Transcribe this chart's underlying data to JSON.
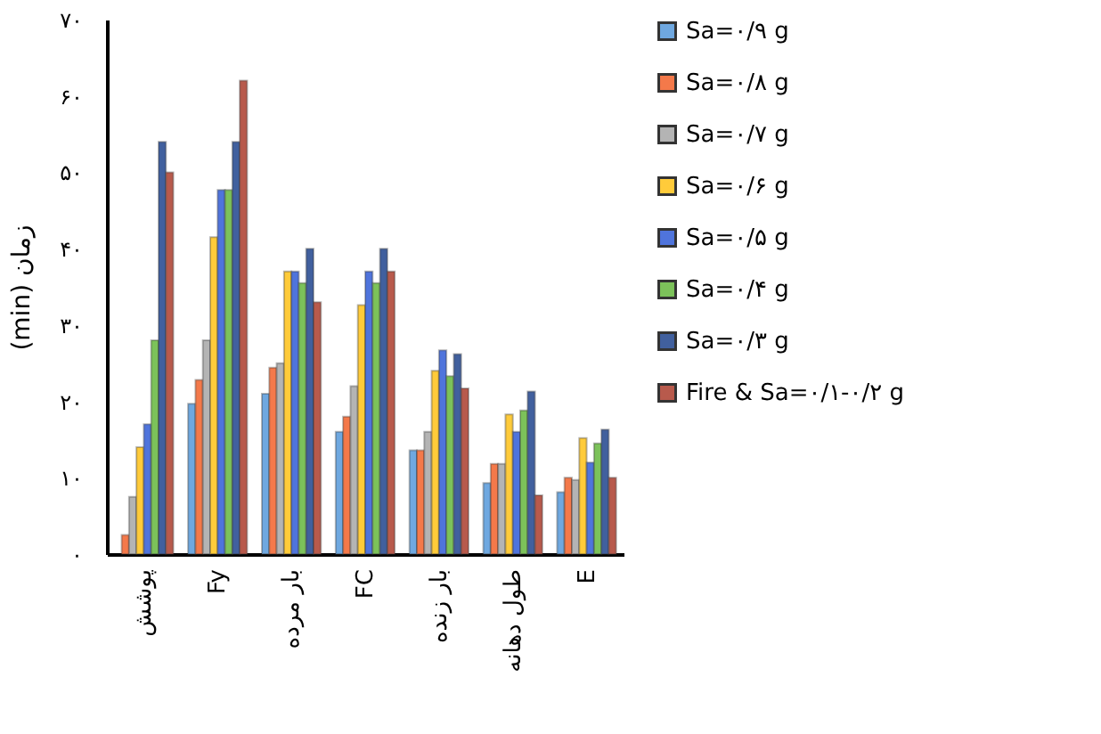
{
  "chart_data": {
    "type": "bar",
    "ylabel": "(min) زمان",
    "categories": [
      "پوشش",
      "Fy",
      "بار مرده",
      "FC",
      "بار زنده",
      "طول دهانه",
      "E"
    ],
    "series": [
      {
        "name": "Sa=۰/۹ g",
        "color": "#6fa8e0",
        "values": [
          null,
          19.7,
          21,
          16,
          13.6,
          9.3,
          8.1
        ]
      },
      {
        "name": "Sa=۰/۸ g",
        "color": "#f4794a",
        "values": [
          2.5,
          22.8,
          24.4,
          18,
          13.6,
          11.8,
          10
        ]
      },
      {
        "name": "Sa=۰/۷ g",
        "color": "#b4b4b4",
        "values": [
          7.5,
          28,
          25,
          22,
          16,
          11.8,
          9.7
        ]
      },
      {
        "name": "Sa=۰/۶ g",
        "color": "#ffcb3a",
        "values": [
          14,
          41.5,
          37,
          32.6,
          24,
          18.3,
          15.2
        ]
      },
      {
        "name": "Sa=۰/۵ g",
        "color": "#4f74dc",
        "values": [
          17,
          47.7,
          37,
          37,
          26.7,
          16,
          12
        ]
      },
      {
        "name": "Sa=۰/۴ g",
        "color": "#7cc25a",
        "values": [
          28,
          47.7,
          35.5,
          35.5,
          23.3,
          18.8,
          14.5
        ]
      },
      {
        "name": "Sa=۰/۳ g",
        "color": "#41609e",
        "values": [
          54,
          54,
          40,
          40,
          26.2,
          21.3,
          16.3
        ]
      },
      {
        "name": "Fire & Sa=۰/۱-۰/۲ g",
        "color": "#b85a4c",
        "values": [
          50,
          62,
          33,
          37,
          21.7,
          7.7,
          10
        ]
      }
    ],
    "ylim": [
      0,
      70
    ],
    "yticks": [
      {
        "value": 0,
        "label": "۰"
      },
      {
        "value": 10,
        "label": "۱۰"
      },
      {
        "value": 20,
        "label": "۲۰"
      },
      {
        "value": 30,
        "label": "۳۰"
      },
      {
        "value": 40,
        "label": "۴۰"
      },
      {
        "value": 50,
        "label": "۵۰"
      },
      {
        "value": 60,
        "label": "۶۰"
      },
      {
        "value": 70,
        "label": "۷۰"
      }
    ],
    "grid": false,
    "legend": "right"
  }
}
